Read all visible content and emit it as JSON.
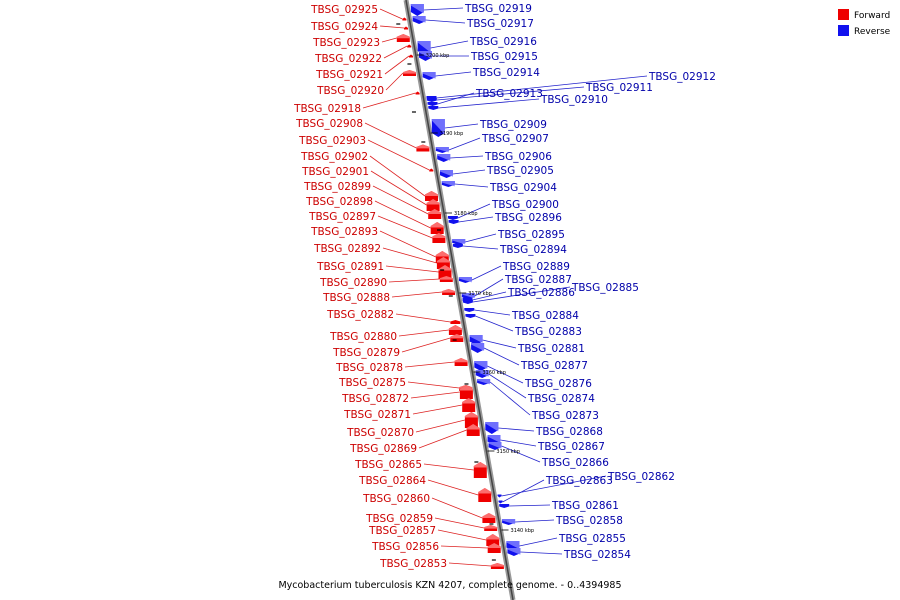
{
  "legend": {
    "forward_label": "Forward",
    "reverse_label": "Reverse",
    "forward_color": "#ee0000",
    "reverse_color": "#1111ee"
  },
  "caption": "Mycobacterium tuberculosis KZN 4207, complete genome. - 0..4394985",
  "ticks": [
    "3200 kbp",
    "3190 kbp",
    "3180 kbp",
    "3170 kbp",
    "3160 kbp",
    "3150 kbp",
    "3140 kbp"
  ],
  "left_labels": [
    "TBSG_02925",
    "TBSG_02924",
    "TBSG_02923",
    "TBSG_02922",
    "TBSG_02921",
    "TBSG_02920",
    "TBSG_02918",
    "TBSG_02908",
    "TBSG_02903",
    "TBSG_02902",
    "TBSG_02901",
    "TBSG_02899",
    "TBSG_02898",
    "TBSG_02897",
    "TBSG_02893",
    "TBSG_02892",
    "TBSG_02891",
    "TBSG_02890",
    "TBSG_02888",
    "TBSG_02882",
    "TBSG_02880",
    "TBSG_02879",
    "TBSG_02878",
    "TBSG_02875",
    "TBSG_02872",
    "TBSG_02871",
    "TBSG_02870",
    "TBSG_02869",
    "TBSG_02865",
    "TBSG_02864",
    "TBSG_02860",
    "TBSG_02859",
    "TBSG_02857",
    "TBSG_02856",
    "TBSG_02853"
  ],
  "right_labels": [
    "TBSG_02919",
    "TBSG_02917",
    "TBSG_02916",
    "TBSG_02915",
    "TBSG_02914",
    "TBSG_02912",
    "TBSG_02911",
    "TBSG_02913",
    "TBSG_02910",
    "TBSG_02909",
    "TBSG_02907",
    "TBSG_02906",
    "TBSG_02905",
    "TBSG_02904",
    "TBSG_02900",
    "TBSG_02896",
    "TBSG_02895",
    "TBSG_02894",
    "TBSG_02889",
    "TBSG_02887",
    "TBSG_02886",
    "TBSG_02885",
    "TBSG_02884",
    "TBSG_02883",
    "TBSG_02881",
    "TBSG_02877",
    "TBSG_02876",
    "TBSG_02874",
    "TBSG_02873",
    "TBSG_02868",
    "TBSG_02867",
    "TBSG_02866",
    "TBSG_02862",
    "TBSG_02863",
    "TBSG_02861",
    "TBSG_02858",
    "TBSG_02855",
    "TBSG_02854"
  ]
}
